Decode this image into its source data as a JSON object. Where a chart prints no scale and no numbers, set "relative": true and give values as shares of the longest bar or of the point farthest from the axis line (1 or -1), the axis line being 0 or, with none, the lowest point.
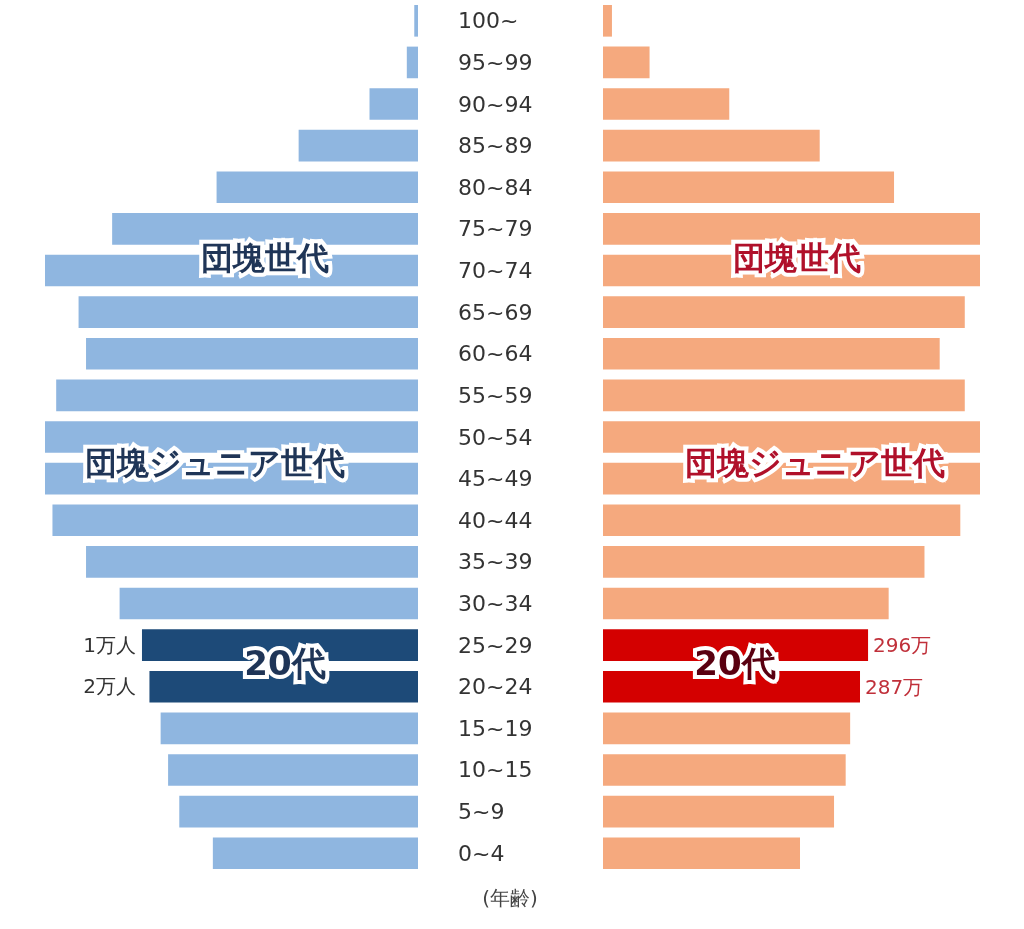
{
  "chart_data": [
    {
      "type": "bar",
      "orientation": "horizontal",
      "relative": true,
      "categories": [
        "100~",
        "95~99",
        "90~94",
        "85~89",
        "80~84",
        "75~79",
        "70~74",
        "65~69",
        "60~64",
        "55~59",
        "50~54",
        "45~49",
        "40~44",
        "35~39",
        "30~34",
        "25~29",
        "20~24",
        "15~19",
        "10~15",
        "5~9",
        "0~4"
      ],
      "series": [
        {
          "values": [
            -0.01,
            -0.03,
            -0.13,
            -0.32,
            -0.54,
            -0.82,
            -1.0,
            -0.91,
            -0.89,
            -0.97,
            -1.0,
            -1.0,
            -0.98,
            -0.89,
            -0.8,
            -0.74,
            -0.72,
            -0.69,
            -0.67,
            -0.64,
            -0.55
          ],
          "colors": [
            "#8fb6e0",
            "#8fb6e0",
            "#8fb6e0",
            "#8fb6e0",
            "#8fb6e0",
            "#8fb6e0",
            "#8fb6e0",
            "#8fb6e0",
            "#8fb6e0",
            "#8fb6e0",
            "#8fb6e0",
            "#8fb6e0",
            "#8fb6e0",
            "#8fb6e0",
            "#8fb6e0",
            "#1d4a78",
            "#1d4a78",
            "#8fb6e0",
            "#8fb6e0",
            "#8fb6e0",
            "#8fb6e0"
          ]
        }
      ],
      "annotations": [
        "団塊世代",
        "団塊ジュニア世代",
        "20代",
        "1万人",
        "2万人",
        "(年齢)"
      ]
    },
    {
      "type": "bar",
      "orientation": "horizontal",
      "tick_labels": false,
      "categories": [
        null,
        null,
        null,
        null,
        null,
        null,
        null,
        null,
        null,
        null,
        null,
        null,
        null,
        null,
        null,
        null,
        null,
        null,
        null,
        null,
        null
      ],
      "series": [
        {
          "values": [
            10,
            52,
            141,
            242,
            325,
            421,
            421,
            404,
            376,
            404,
            421,
            421,
            399,
            359,
            319,
            296,
            287,
            276,
            271,
            258,
            220
          ],
          "colors": [
            "#f5a97e",
            "#f5a97e",
            "#f5a97e",
            "#f5a97e",
            "#f5a97e",
            "#f5a97e",
            "#f5a97e",
            "#f5a97e",
            "#f5a97e",
            "#f5a97e",
            "#f5a97e",
            "#f5a97e",
            "#f5a97e",
            "#f5a97e",
            "#f5a97e",
            "#d40000",
            "#d40000",
            "#f5a97e",
            "#f5a97e",
            "#f5a97e",
            "#f5a97e"
          ],
          "value_labels": [
            null,
            null,
            null,
            null,
            null,
            null,
            null,
            null,
            null,
            null,
            null,
            null,
            null,
            null,
            null,
            "296万",
            "287万",
            null,
            null,
            null,
            null
          ]
        }
      ],
      "annotations": [
        "団塊世代",
        "団塊ジュニア世代",
        "20代"
      ]
    }
  ]
}
